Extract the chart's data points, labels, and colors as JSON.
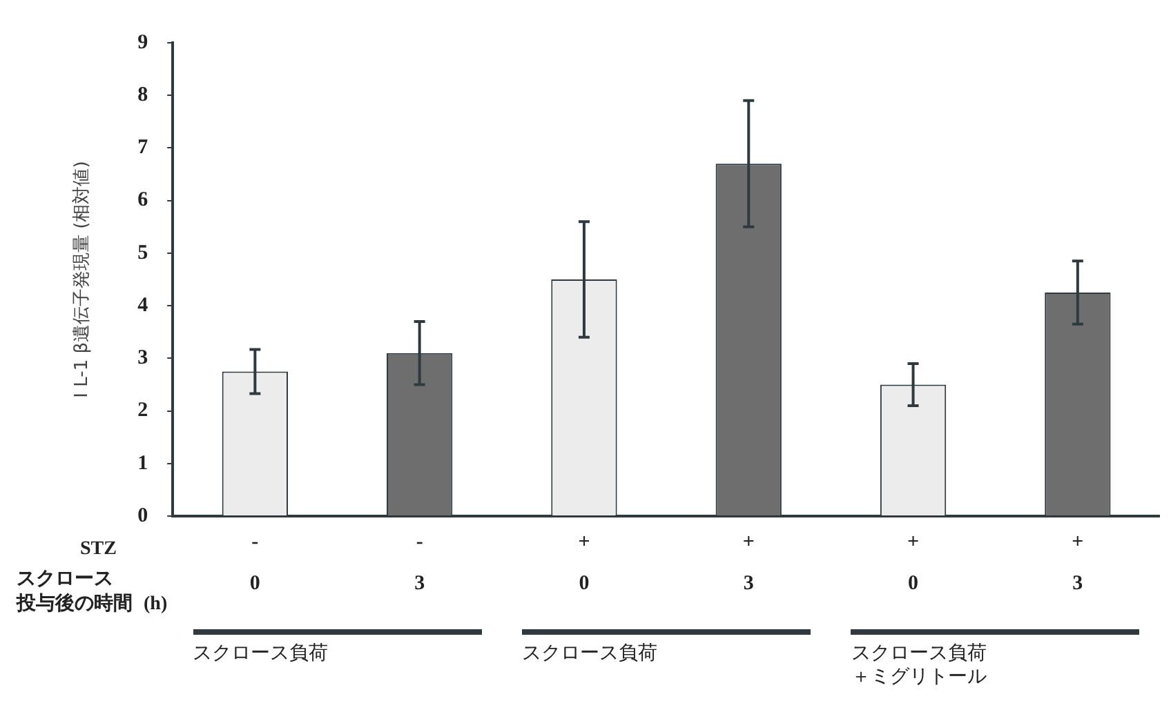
{
  "chart_data": {
    "type": "bar",
    "categories": [
      "-\n0",
      "-\n3",
      "+\n0",
      "+\n3",
      "+\n0",
      "+\n3"
    ],
    "values": [
      2.75,
      3.1,
      4.5,
      6.7,
      2.5,
      4.25
    ],
    "colors": [
      "#ececec",
      "#6e6e6e",
      "#ececec",
      "#6e6e6e",
      "#ececec",
      "#6e6e6e"
    ],
    "errors": [
      0.42,
      0.6,
      1.1,
      1.2,
      0.4,
      0.6
    ],
    "ylabel": "I L-1 β遺伝子発現量 (相対値)",
    "ylim": [
      0,
      9
    ],
    "yticks": [
      0,
      1,
      2,
      3,
      4,
      5,
      6,
      7,
      8,
      9
    ],
    "grid": false,
    "legend": false,
    "annotations": [
      "STZ",
      "スクロース",
      "投与後の時間",
      "(h)",
      "スクロース負荷",
      "スクロース負荷",
      "スクロース負荷",
      "＋ミグリトール"
    ]
  }
}
